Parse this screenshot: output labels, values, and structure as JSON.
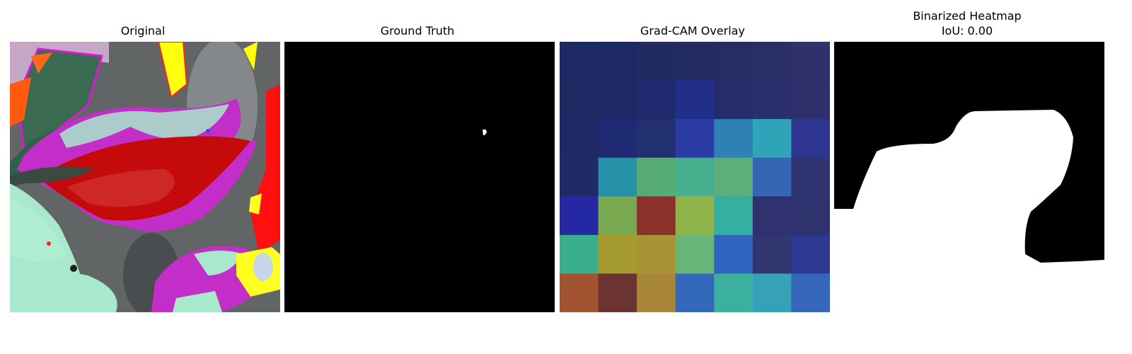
{
  "panels": [
    {
      "title": "Original"
    },
    {
      "title": "Ground Truth"
    },
    {
      "title": "Grad-CAM Overlay"
    },
    {
      "title": "Binarized Heatmap",
      "subtitle": "IoU: 0.00"
    }
  ],
  "gradcam_grid": [
    [
      "#1e2a63",
      "#1d2962",
      "#1f2b62",
      "#222c62",
      "#262c66",
      "#2a2f6a",
      "#2e316c"
    ],
    [
      "#1e2963",
      "#1e2965",
      "#1f2a6f",
      "#222f8a",
      "#262c68",
      "#2b2f6c",
      "#2e306c"
    ],
    [
      "#1e2966",
      "#1e2a72",
      "#23306e",
      "#2b3ca5",
      "#2f80b5",
      "#2fa4b8",
      "#2e3590"
    ],
    [
      "#1e2b66",
      "#2591a8",
      "#57ab74",
      "#47b08e",
      "#5dae7a",
      "#3466b4",
      "#2f3470"
    ],
    [
      "#2428a2",
      "#79aa52",
      "#8a312c",
      "#8fb44a",
      "#33b0a2",
      "#30316e",
      "#2e336e"
    ],
    [
      "#3aae8e",
      "#a59a2f",
      "#a89334",
      "#68b677",
      "#3164be",
      "#31376e",
      "#2f3890"
    ],
    [
      "#a25430",
      "#6b3433",
      "#a8873a",
      "#3367ba",
      "#3cb09e",
      "#36a2b8",
      "#3566bc"
    ]
  ]
}
